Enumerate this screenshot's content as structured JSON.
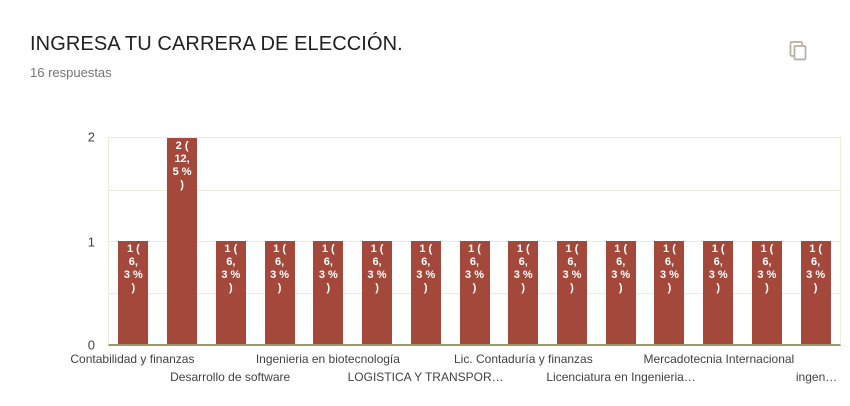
{
  "header": {
    "title": "INGRESA TU CARRERA DE ELECCIÓN.",
    "subtitle": "16 respuestas",
    "copy_button_tooltip": "Copiar"
  },
  "colors": {
    "bar": "#A3483A",
    "gridline": "#EFEBDD",
    "baseline": "#99996E",
    "title_text": "#212121",
    "subtitle_text": "#757575",
    "axis_tick_text": "#444444",
    "category_text": "#424242",
    "bar_label_text": "#FFFFFF",
    "copy_icon": "#B6B0A3"
  },
  "chart_data": {
    "type": "bar",
    "title": "INGRESA TU CARRERA DE ELECCIÓN.",
    "subtitle": "16 respuestas",
    "legend": "none",
    "grid": "horizontal, light",
    "ylim": [
      0,
      2
    ],
    "y_ticks": [
      "0",
      "1",
      "2"
    ],
    "gridline_values": [
      0.5,
      1,
      1.5,
      2
    ],
    "categories": [
      "Contabilidad y finanzas",
      "",
      "Desarrollo de software",
      "",
      "Ingenieria en biotecnología",
      "",
      "LOGISTICA Y TRANSPOR…",
      "",
      "Lic. Contaduría y finanzas",
      "",
      "Licenciatura en Ingenieria…",
      "",
      "Mercadotecnia Internacional",
      "",
      "ingen…"
    ],
    "values": [
      1,
      2,
      1,
      1,
      1,
      1,
      1,
      1,
      1,
      1,
      1,
      1,
      1,
      1,
      1
    ],
    "bar_labels": [
      "1 (6,3 %)",
      "2 (12,5 %)",
      "1 (6,3 %)",
      "1 (6,3 %)",
      "1 (6,3 %)",
      "1 (6,3 %)",
      "1 (6,3 %)",
      "1 (6,3 %)",
      "1 (6,3 %)",
      "1 (6,3 %)",
      "1 (6,3 %)",
      "1 (6,3 %)",
      "1 (6,3 %)",
      "1 (6,3 %)",
      "1 (6,3 %)"
    ],
    "bar_label_wrap": {
      "1": [
        "1 (",
        "6,",
        "3 %",
        ")"
      ],
      "2": [
        "2 (",
        "12,",
        "5 %",
        ")"
      ]
    }
  }
}
